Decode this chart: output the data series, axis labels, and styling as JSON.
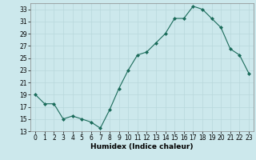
{
  "x": [
    0,
    1,
    2,
    3,
    4,
    5,
    6,
    7,
    8,
    9,
    10,
    11,
    12,
    13,
    14,
    15,
    16,
    17,
    18,
    19,
    20,
    21,
    22,
    23
  ],
  "y": [
    19,
    17.5,
    17.5,
    15,
    15.5,
    15,
    14.5,
    13.5,
    16.5,
    20,
    23,
    25.5,
    26,
    27.5,
    29,
    31.5,
    31.5,
    33.5,
    33,
    31.5,
    30,
    26.5,
    25.5,
    22.5
  ],
  "line_color": "#1a6b5a",
  "marker": "D",
  "marker_size": 2.0,
  "bg_color": "#cce8ec",
  "grid_color": "#b8d8dc",
  "xlabel": "Humidex (Indice chaleur)",
  "ylim": [
    13,
    34
  ],
  "xlim": [
    -0.5,
    23.5
  ],
  "yticks": [
    13,
    15,
    17,
    19,
    21,
    23,
    25,
    27,
    29,
    31,
    33
  ],
  "xticks": [
    0,
    1,
    2,
    3,
    4,
    5,
    6,
    7,
    8,
    9,
    10,
    11,
    12,
    13,
    14,
    15,
    16,
    17,
    18,
    19,
    20,
    21,
    22,
    23
  ],
  "tick_label_fontsize": 5.5,
  "xlabel_fontsize": 6.5
}
